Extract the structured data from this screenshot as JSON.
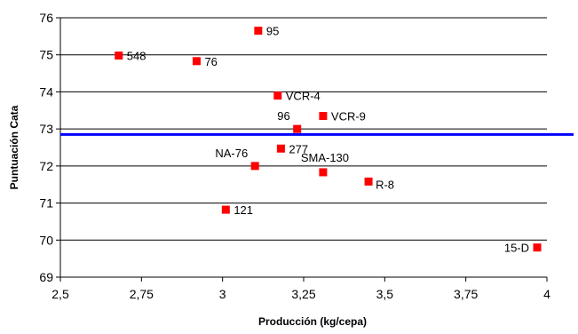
{
  "chart_data": {
    "type": "scatter",
    "title": "",
    "xlabel": "Producción (kg/cepa)",
    "ylabel": "Puntuación Cata",
    "xlim": [
      2.5,
      4
    ],
    "ylim": [
      69,
      76
    ],
    "x_ticks": [
      "2,5",
      "2,75",
      "3",
      "3,25",
      "3,5",
      "3,75",
      "4"
    ],
    "y_ticks": [
      "69",
      "70",
      "71",
      "72",
      "73",
      "74",
      "75",
      "76"
    ],
    "grid": "horizontal",
    "reference_line": {
      "y": 72.85,
      "color": "#0000ff"
    },
    "marker_color": "#ff0000",
    "points": [
      {
        "label": "548",
        "x": 2.68,
        "y": 74.98,
        "label_pos": "right"
      },
      {
        "label": "76",
        "x": 2.92,
        "y": 74.83,
        "label_pos": "right"
      },
      {
        "label": "95",
        "x": 3.11,
        "y": 75.65,
        "label_pos": "right"
      },
      {
        "label": "VCR-4",
        "x": 3.17,
        "y": 73.9,
        "label_pos": "right"
      },
      {
        "label": "VCR-9",
        "x": 3.31,
        "y": 73.35,
        "label_pos": "right"
      },
      {
        "label": "96",
        "x": 3.23,
        "y": 73.0,
        "label_pos": "above-left"
      },
      {
        "label": "277",
        "x": 3.18,
        "y": 72.47,
        "label_pos": "right"
      },
      {
        "label": "NA-76",
        "x": 3.1,
        "y": 72.0,
        "label_pos": "above-left"
      },
      {
        "label": "SMA-130",
        "x": 3.31,
        "y": 71.83,
        "label_pos": "above-right"
      },
      {
        "label": "R-8",
        "x": 3.45,
        "y": 71.58,
        "label_pos": "right-low"
      },
      {
        "label": "121",
        "x": 3.01,
        "y": 70.82,
        "label_pos": "right"
      },
      {
        "label": "15-D",
        "x": 3.97,
        "y": 69.8,
        "label_pos": "left"
      }
    ]
  }
}
